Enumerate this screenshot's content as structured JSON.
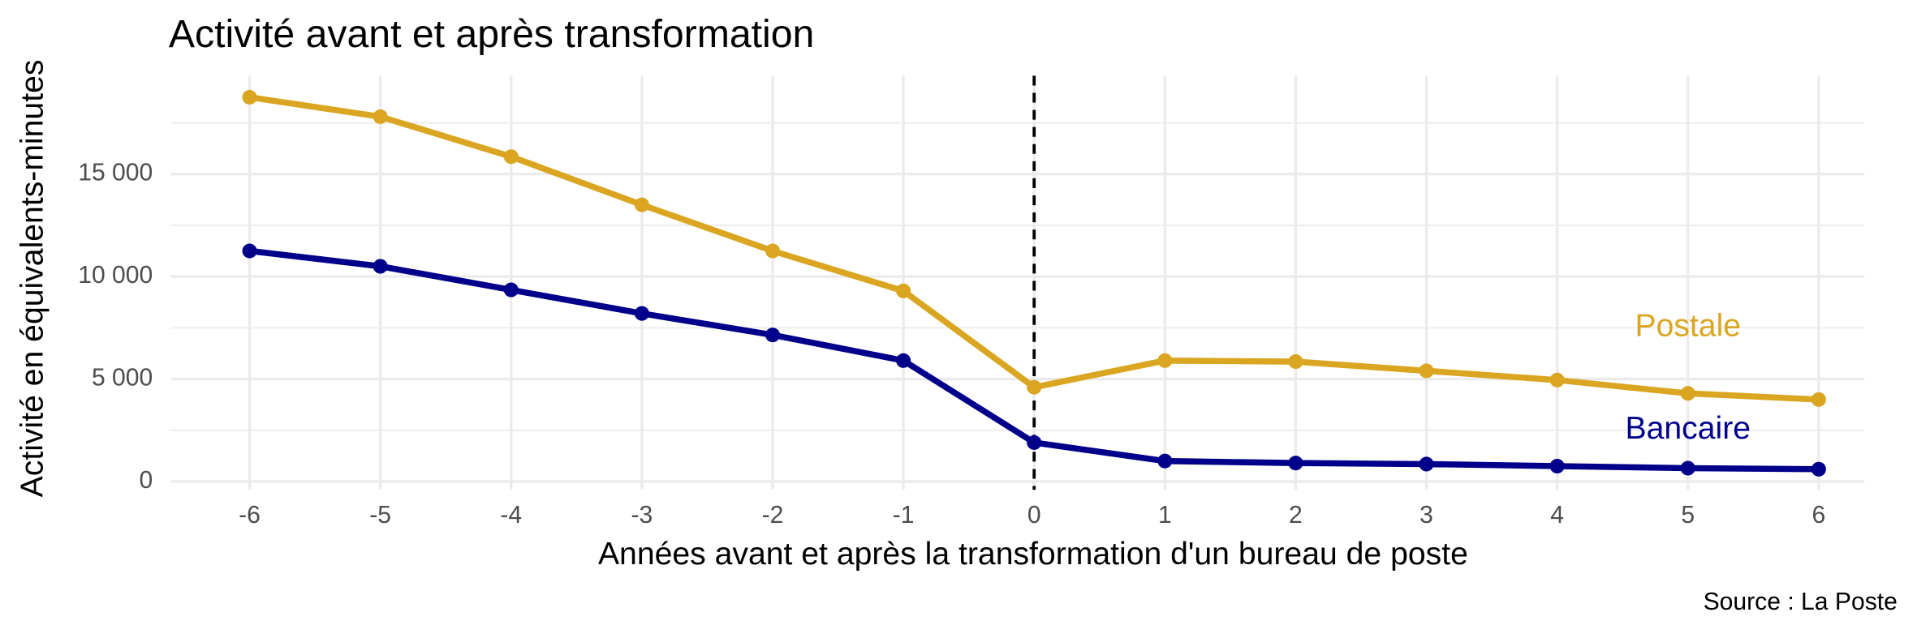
{
  "chart_data": {
    "type": "line",
    "title": "Activité avant et après transformation",
    "x_label": "Années avant et après la transformation d'un bureau de poste",
    "y_label": "Activité en équivalents-minutes",
    "source": "Source : La Poste",
    "x": [
      -6,
      -5,
      -4,
      -3,
      -2,
      -1,
      0,
      1,
      2,
      3,
      4,
      5,
      6
    ],
    "series": [
      {
        "name": "Postale",
        "color": "#daa520",
        "label_at": [
          5,
          7500
        ],
        "values": [
          18750,
          17800,
          15850,
          13500,
          11250,
          9300,
          4600,
          5900,
          5850,
          5400,
          4950,
          4300,
          4000
        ]
      },
      {
        "name": "Bancaire",
        "color": "#00008b",
        "label_at": [
          5,
          2500
        ],
        "values": [
          11250,
          10500,
          9350,
          8200,
          7150,
          5900,
          1900,
          1000,
          900,
          850,
          750,
          650,
          600
        ]
      }
    ],
    "xlim": [
      -6.6,
      6.35
    ],
    "xticks": [
      -6,
      -5,
      -4,
      -3,
      -2,
      -1,
      0,
      1,
      2,
      3,
      4,
      5,
      6
    ],
    "ylim": [
      -400,
      19800
    ],
    "yticks": [
      0,
      {
        "value": 5000,
        "label": "5 000"
      },
      {
        "value": 10000,
        "label": "10 000"
      },
      {
        "value": 15000,
        "label": "15 000"
      }
    ],
    "yminor_ticks": [
      2500,
      7500,
      12500,
      17500
    ],
    "vline": 0,
    "grid": true
  }
}
